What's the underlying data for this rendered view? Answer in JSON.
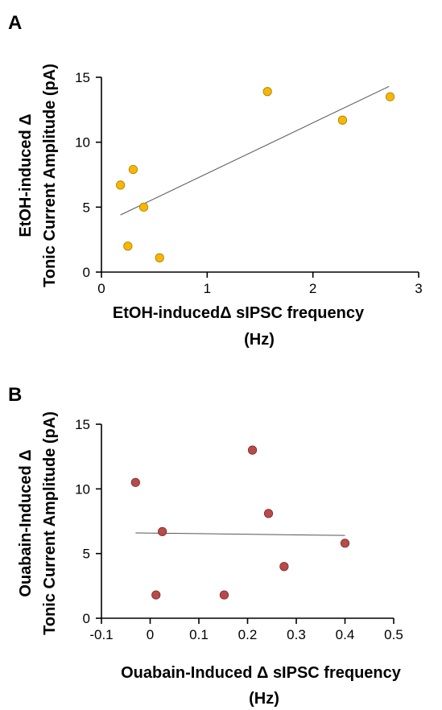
{
  "chart_data": [
    {
      "type": "scatter",
      "panel_label": "A",
      "xlabel_line1": "EtOH-inducedΔ sIPSC frequency",
      "xlabel_line2": "(Hz)",
      "ylabel_line1": "EtOH-induced Δ",
      "ylabel_line2": "Tonic Current Amplitude (pA)",
      "xlim": [
        0,
        3
      ],
      "ylim": [
        0,
        15
      ],
      "xticks": [
        0,
        1,
        2,
        3
      ],
      "yticks": [
        0,
        5,
        10,
        15
      ],
      "marker_color": "#f5b800",
      "marker_edge": "#b07a00",
      "points": [
        {
          "x": 0.18,
          "y": 6.7
        },
        {
          "x": 0.3,
          "y": 7.9
        },
        {
          "x": 0.4,
          "y": 5.0
        },
        {
          "x": 0.25,
          "y": 2.0
        },
        {
          "x": 0.55,
          "y": 1.1
        },
        {
          "x": 1.57,
          "y": 13.9
        },
        {
          "x": 2.28,
          "y": 11.7
        },
        {
          "x": 2.73,
          "y": 13.5
        }
      ],
      "fit_line": {
        "x": [
          0.18,
          2.72
        ],
        "y": [
          4.4,
          14.3
        ]
      },
      "grid": false
    },
    {
      "type": "scatter",
      "panel_label": "B",
      "xlabel_line1": "Ouabain-Induced Δ sIPSC frequency",
      "xlabel_line2": "(Hz)",
      "ylabel_line1": "Ouabain-Induced Δ",
      "ylabel_line2": "Tonic Current Amplitude (pA)",
      "xlim": [
        -0.1,
        0.5
      ],
      "ylim": [
        0,
        15
      ],
      "xticks": [
        -0.1,
        0,
        0.1,
        0.2,
        0.3,
        0.4,
        0.5
      ],
      "yticks": [
        0,
        5,
        10,
        15
      ],
      "marker_color": "#b84a4a",
      "marker_edge": "#7a2a2a",
      "points": [
        {
          "x": -0.03,
          "y": 10.5
        },
        {
          "x": 0.025,
          "y": 6.7
        },
        {
          "x": 0.012,
          "y": 1.8
        },
        {
          "x": 0.152,
          "y": 1.8
        },
        {
          "x": 0.21,
          "y": 13.0
        },
        {
          "x": 0.243,
          "y": 8.1
        },
        {
          "x": 0.275,
          "y": 4.0
        },
        {
          "x": 0.4,
          "y": 5.8
        }
      ],
      "fit_line": {
        "x": [
          -0.03,
          0.4
        ],
        "y": [
          6.6,
          6.4
        ]
      },
      "grid": false
    }
  ]
}
